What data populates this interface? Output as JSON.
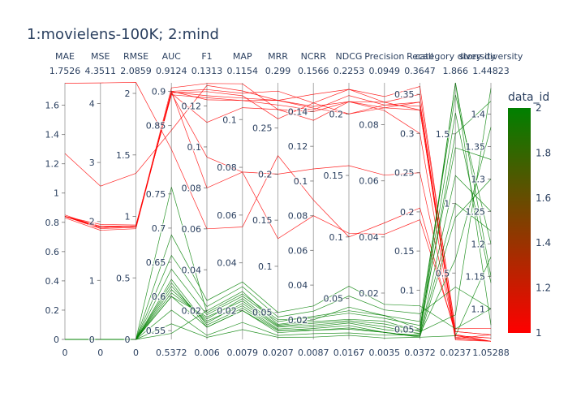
{
  "chart_data": {
    "type": "parallel_coordinates",
    "title": "1:movielens-100K; 2:mind",
    "color_variable": "data_id",
    "colorscale": [
      "#ff0000",
      "#008000"
    ],
    "color_range": [
      1,
      2
    ],
    "colorbar_ticks": [
      "1",
      "1.2",
      "1.4",
      "1.6",
      "1.8",
      "2"
    ],
    "dimensions": [
      {
        "label": "MAE",
        "range": [
          0,
          1.7526
        ],
        "range_labels": [
          "0",
          "1.7526"
        ],
        "ticks": [
          0,
          0.2,
          0.4,
          0.6,
          0.8,
          1,
          1.2,
          1.4,
          1.6
        ],
        "tick_labels": [
          "0",
          "0.2",
          "0.4",
          "0.6",
          "0.8",
          "1",
          "1.2",
          "1.4",
          "1.6"
        ]
      },
      {
        "label": "MSE",
        "range": [
          0,
          4.3511
        ],
        "range_labels": [
          "0",
          "4.3511"
        ],
        "ticks": [
          0,
          1,
          2,
          3,
          4
        ],
        "tick_labels": [
          "0",
          "1",
          "2",
          "3",
          "4"
        ]
      },
      {
        "label": "RMSE",
        "range": [
          0,
          2.0859
        ],
        "range_labels": [
          "0",
          "2.0859"
        ],
        "ticks": [
          0,
          0.5,
          1,
          1.5,
          2
        ],
        "tick_labels": [
          "0",
          "0.5",
          "1",
          "1.5",
          "2"
        ]
      },
      {
        "label": "AUC",
        "range": [
          0.5372,
          0.9124
        ],
        "range_labels": [
          "0.5372",
          "0.9124"
        ],
        "ticks": [
          0.55,
          0.6,
          0.65,
          0.7,
          0.75,
          0.85,
          0.9
        ],
        "tick_labels": [
          "0.55",
          "0.6",
          "0.65",
          "0.7",
          "0.75",
          "0.85",
          "0.9"
        ]
      },
      {
        "label": "F1",
        "range": [
          0.006,
          0.1313
        ],
        "range_labels": [
          "0.006",
          "0.1313"
        ],
        "ticks": [
          0.02,
          0.04,
          0.06,
          0.08,
          0.1,
          0.12
        ],
        "tick_labels": [
          "0.02",
          "0.04",
          "0.06",
          "0.08",
          "0.1",
          "0.12"
        ]
      },
      {
        "label": "MAP",
        "range": [
          0.0079,
          0.1154
        ],
        "range_labels": [
          "0.0079",
          "0.1154"
        ],
        "ticks": [
          0.02,
          0.04,
          0.06,
          0.08,
          0.1
        ],
        "tick_labels": [
          "0.02",
          "0.04",
          "0.06",
          "0.08",
          "0.1"
        ]
      },
      {
        "label": "MRR",
        "range": [
          0.0207,
          0.299
        ],
        "range_labels": [
          "0.0207",
          "0.299"
        ],
        "ticks": [
          0.05,
          0.1,
          0.15,
          0.2,
          0.25
        ],
        "tick_labels": [
          "0.05",
          "0.1",
          "0.15",
          "0.2",
          "0.25"
        ]
      },
      {
        "label": "NCRR",
        "range": [
          0.0087,
          0.1566
        ],
        "range_labels": [
          "0.0087",
          "0.1566"
        ],
        "ticks": [
          0.02,
          0.04,
          0.06,
          0.08,
          0.1,
          0.12,
          0.14
        ],
        "tick_labels": [
          "0.02",
          "0.04",
          "0.06",
          "0.08",
          "0.1",
          "0.12",
          "0.14"
        ]
      },
      {
        "label": "NDCG",
        "range": [
          0.0167,
          0.2253
        ],
        "range_labels": [
          "0.0167",
          "0.2253"
        ],
        "ticks": [
          0.05,
          0.1,
          0.15,
          0.2
        ],
        "tick_labels": [
          "0.05",
          "0.1",
          "0.15",
          "0.2"
        ]
      },
      {
        "label": "Precision",
        "range": [
          0.0035,
          0.0949
        ],
        "range_labels": [
          "0.0035",
          "0.0949"
        ],
        "ticks": [
          0.02,
          0.04,
          0.06,
          0.08
        ],
        "tick_labels": [
          "0.02",
          "0.04",
          "0.06",
          "0.08"
        ]
      },
      {
        "label": "Recall",
        "range": [
          0.0372,
          0.3647
        ],
        "range_labels": [
          "0.0372",
          "0.3647"
        ],
        "ticks": [
          0.05,
          0.1,
          0.15,
          0.2,
          0.25,
          0.3,
          0.35
        ],
        "tick_labels": [
          "0.05",
          "0.1",
          "0.15",
          "0.2",
          "0.25",
          "0.3",
          "0.35"
        ]
      },
      {
        "label": "category diversity",
        "range": [
          0.0237,
          1.866
        ],
        "range_labels": [
          "0.0237",
          "1.866"
        ],
        "ticks": [
          0.5,
          1,
          1.5
        ],
        "tick_labels": [
          "0.5",
          "1",
          "1.5"
        ]
      },
      {
        "label": "story diversity",
        "range": [
          1.05288,
          1.44823
        ],
        "range_labels": [
          "1.05288",
          "1.44823"
        ],
        "ticks": [
          1.1,
          1.15,
          1.2,
          1.25,
          1.3,
          1.35,
          1.4
        ],
        "tick_labels": [
          "1.1",
          "1.15",
          "1.2",
          "1.25",
          "1.3",
          "1.35",
          "1.4"
        ]
      }
    ],
    "lines": [
      {
        "data_id": 1,
        "values": [
          0.84,
          1.9,
          0.92,
          0.905,
          0.131,
          0.115,
          0.27,
          0.14,
          0.21,
          0.085,
          0.3,
          0.02,
          1.05
        ]
      },
      {
        "data_id": 1,
        "values": [
          0.83,
          1.85,
          0.9,
          0.9,
          0.128,
          0.111,
          0.29,
          0.145,
          0.2,
          0.087,
          0.34,
          0.05,
          1.055
        ]
      },
      {
        "data_id": 1,
        "values": [
          0.84,
          1.95,
          0.93,
          0.895,
          0.124,
          0.108,
          0.28,
          0.15,
          0.22,
          0.09,
          0.36,
          0.08,
          1.06
        ]
      },
      {
        "data_id": 1,
        "values": [
          0.85,
          1.9,
          0.92,
          0.897,
          0.112,
          0.105,
          0.27,
          0.135,
          0.21,
          0.088,
          0.35,
          0.1,
          1.07
        ]
      },
      {
        "data_id": 1,
        "values": [
          0.84,
          1.88,
          0.91,
          0.9,
          0.08,
          0.078,
          0.13,
          0.08,
          0.103,
          0.041,
          0.19,
          0.08,
          1.06
        ]
      },
      {
        "data_id": 1,
        "values": [
          0.84,
          1.9,
          0.92,
          0.897,
          0.095,
          0.078,
          0.2,
          0.107,
          0.158,
          0.062,
          0.25,
          0.05,
          1.05
        ]
      },
      {
        "data_id": 1,
        "values": [
          0.84,
          1.92,
          0.92,
          0.898,
          0.127,
          0.11,
          0.26,
          0.145,
          0.22,
          0.088,
          0.33,
          0.03,
          1.05
        ]
      },
      {
        "data_id": 1,
        "values": [
          0.84,
          1.9,
          0.92,
          0.899,
          0.125,
          0.109,
          0.28,
          0.143,
          0.21,
          0.086,
          0.33,
          0.04,
          1.05
        ]
      },
      {
        "data_id": 1,
        "values": [
          0.84,
          1.9,
          0.92,
          0.9,
          0.123,
          0.108,
          0.275,
          0.141,
          0.215,
          0.087,
          0.335,
          0.05,
          1.055
        ]
      },
      {
        "data_id": 1,
        "values": [
          1.27,
          2.6,
          1.35,
          0.843,
          0.13,
          0.112,
          0.28,
          0.142,
          0.2,
          0.086,
          0.34,
          0.03,
          1.06
        ]
      },
      {
        "data_id": 1,
        "values": [
          1.75,
          4.35,
          2.09,
          0.815,
          0.06,
          0.055,
          0.22,
          0.089,
          0.1,
          0.045,
          0.205,
          0.06,
          1.05
        ]
      },
      {
        "data_id": 2,
        "values": [
          0.0,
          0.0,
          0.0,
          0.546,
          0.02,
          0.028,
          0.037,
          0.02,
          0.043,
          0.012,
          0.05,
          1.866,
          1.075
        ]
      },
      {
        "data_id": 2,
        "values": [
          0.0,
          0.0,
          0.0,
          0.6,
          0.017,
          0.024,
          0.035,
          0.018,
          0.032,
          0.009,
          0.048,
          1.65,
          1.14
        ]
      },
      {
        "data_id": 2,
        "values": [
          0.0,
          0.0,
          0.0,
          0.61,
          0.015,
          0.022,
          0.032,
          0.016,
          0.03,
          0.007,
          0.045,
          1.5,
          1.42
        ]
      },
      {
        "data_id": 2,
        "values": [
          0.0,
          0.0,
          0.0,
          0.62,
          0.012,
          0.02,
          0.03,
          0.015,
          0.028,
          0.006,
          0.042,
          1.2,
          1.25
        ]
      },
      {
        "data_id": 2,
        "values": [
          0.0,
          0.0,
          0.0,
          0.625,
          0.013,
          0.021,
          0.031,
          0.014,
          0.026,
          0.006,
          0.04,
          0.9,
          1.3
        ]
      },
      {
        "data_id": 2,
        "values": [
          0.0,
          0.0,
          0.0,
          0.615,
          0.014,
          0.023,
          0.034,
          0.017,
          0.031,
          0.008,
          0.044,
          0.6,
          1.38
        ]
      },
      {
        "data_id": 2,
        "values": [
          0.0,
          0.0,
          0.0,
          0.605,
          0.016,
          0.025,
          0.036,
          0.019,
          0.033,
          0.01,
          0.047,
          0.2,
          1.44
        ]
      },
      {
        "data_id": 2,
        "values": [
          0.0,
          0.0,
          0.0,
          0.64,
          0.018,
          0.026,
          0.04,
          0.022,
          0.04,
          0.012,
          0.06,
          1.78,
          1.2
        ]
      },
      {
        "data_id": 2,
        "values": [
          0.0,
          0.0,
          0.0,
          0.66,
          0.022,
          0.03,
          0.045,
          0.025,
          0.052,
          0.014,
          0.07,
          0.4,
          1.1
        ]
      },
      {
        "data_id": 2,
        "values": [
          0.0,
          0.0,
          0.0,
          0.69,
          0.025,
          0.032,
          0.05,
          0.028,
          0.06,
          0.016,
          0.08,
          0.1,
          1.1
        ]
      },
      {
        "data_id": 2,
        "values": [
          0.0,
          0.0,
          0.0,
          0.76,
          0.019,
          0.027,
          0.042,
          0.021,
          0.038,
          0.011,
          0.055,
          1.4,
          1.33
        ]
      },
      {
        "data_id": 2,
        "values": [
          0.0,
          0.0,
          0.0,
          0.58,
          0.008,
          0.015,
          0.025,
          0.012,
          0.022,
          0.005,
          0.043,
          1.0,
          1.22
        ]
      },
      {
        "data_id": 2,
        "values": [
          0.0,
          0.0,
          0.0,
          0.56,
          0.007,
          0.012,
          0.023,
          0.01,
          0.02,
          0.004,
          0.04,
          0.05,
          1.18
        ]
      },
      {
        "data_id": 2,
        "values": [
          0.0,
          0.0,
          0.0,
          0.6,
          0.012,
          0.02,
          0.028,
          0.014,
          0.025,
          0.006,
          0.041,
          1.866,
          1.15
        ]
      }
    ]
  }
}
